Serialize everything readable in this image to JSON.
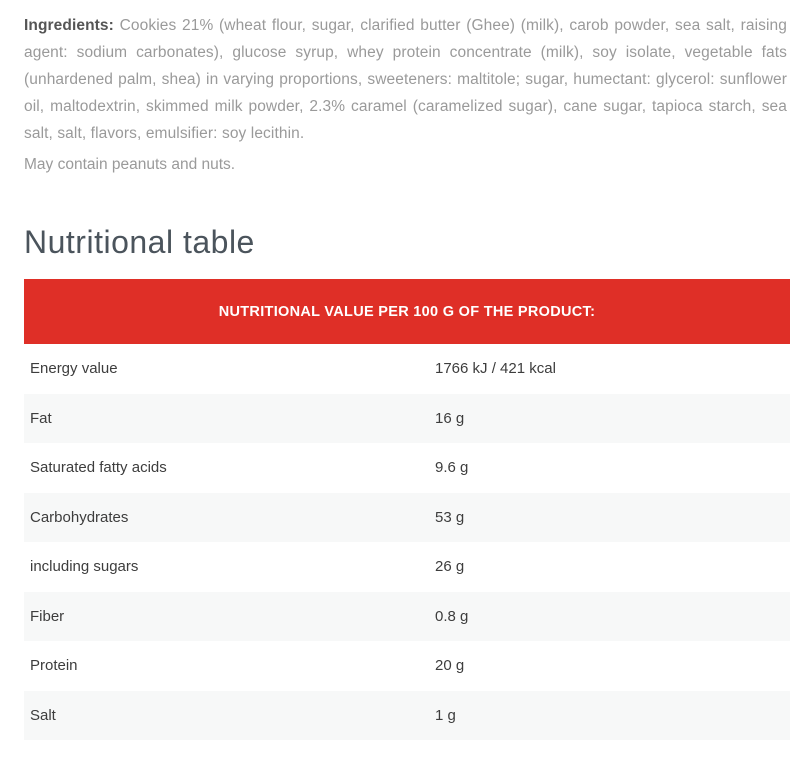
{
  "ingredients": {
    "label": "Ingredients:",
    "text": "Cookies 21% (wheat flour, sugar, clarified butter (Ghee) (milk), carob powder, sea salt, raising agent: sodium carbonates), glucose syrup, whey protein concentrate (milk), soy isolate, vegetable fats (unhardened palm, shea) in varying proportions, sweeteners: maltitole; sugar, humectant: glycerol: sunflower oil, maltodextrin, skimmed milk powder, 2.3% caramel (caramelized sugar), cane sugar, tapioca starch, sea salt, salt, flavors, emulsifier: soy lecithin.",
    "note": "May contain peanuts and nuts."
  },
  "section": {
    "title": "Nutritional table"
  },
  "table": {
    "header": "NUTRITIONAL VALUE PER 100 G OF THE PRODUCT:",
    "rows": [
      {
        "label": "Energy value",
        "value": "1766 kJ / 421 kcal"
      },
      {
        "label": "Fat",
        "value": "16 g"
      },
      {
        "label": "Saturated fatty acids",
        "value": "9.6 g"
      },
      {
        "label": "Carbohydrates",
        "value": "53 g"
      },
      {
        "label": "including sugars",
        "value": "26 g"
      },
      {
        "label": "Fiber",
        "value": "0.8 g"
      },
      {
        "label": "Protein",
        "value": "20 g"
      },
      {
        "label": "Salt",
        "value": "1 g"
      }
    ]
  },
  "colors": {
    "accent_red": "#df2f27",
    "banner_text": "#ffffff",
    "row_alt_bg": "#f7f8f8",
    "heading_text": "#4b545c",
    "body_text": "#9a9a9a",
    "table_text": "#3d3d3d"
  }
}
